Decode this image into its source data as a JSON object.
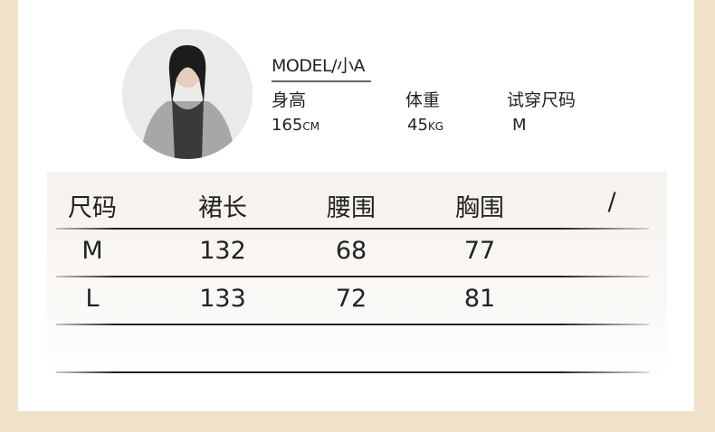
{
  "model": {
    "title": "MODEL/小A",
    "height_label": "身高",
    "height_value": "165",
    "height_unit": "CM",
    "weight_label": "体重",
    "weight_value": "45",
    "weight_unit": "KG",
    "size_label": "试穿尺码",
    "size_value": "M"
  },
  "table": {
    "headers": [
      "尺码",
      "裙长",
      "腰围",
      "胸围",
      "/"
    ],
    "rows": [
      [
        "M",
        "132",
        "68",
        "77",
        ""
      ],
      [
        "L",
        "133",
        "72",
        "81",
        ""
      ]
    ]
  },
  "colors": {
    "background": "#f0e2c9",
    "panel": "#ffffff"
  }
}
